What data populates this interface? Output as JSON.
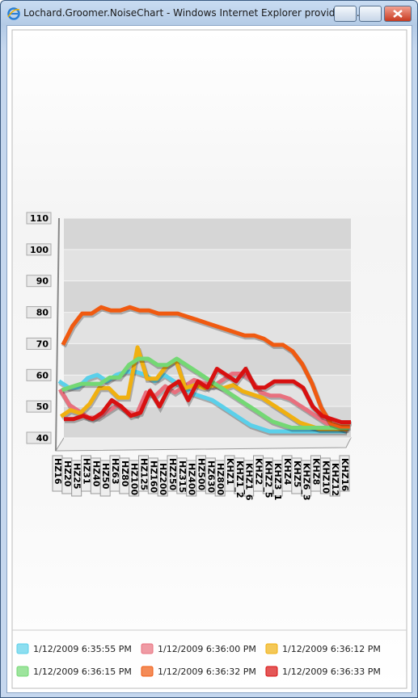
{
  "window": {
    "title": "Lochard.Groomer.NoiseChart - Windows Internet Explorer provided b..."
  },
  "chart_data": {
    "type": "line",
    "categories": [
      "HZ16",
      "HZ20",
      "HZ25",
      "HZ31",
      "HZ40",
      "HZ50",
      "HZ63",
      "HZ80",
      "HZ100",
      "HZ125",
      "HZ160",
      "HZ200",
      "HZ250",
      "HZ315",
      "HZ400",
      "HZ500",
      "HZ630",
      "HZ800",
      "KHZ1",
      "KHZ1_2",
      "KHZ1_6",
      "KHZ2",
      "KHZ2_5",
      "KHZ3_1",
      "KHZ4",
      "KHZ5",
      "KHZ6_3",
      "KHZ8",
      "KHZ10",
      "KHZ12",
      "KHZ16"
    ],
    "ylim": [
      40,
      110
    ],
    "yticks": [
      40,
      50,
      60,
      70,
      80,
      90,
      100,
      110
    ],
    "legend": "bottom",
    "series": [
      {
        "name": "1/12/2009 6:35:55 PM",
        "color": "#5bd0ea",
        "values": [
          60,
          58,
          58,
          61,
          62,
          60,
          62,
          63,
          63,
          62,
          60,
          62,
          60,
          58,
          56,
          55,
          54,
          52,
          50,
          48,
          46,
          45,
          44,
          44,
          44,
          44,
          44,
          44,
          44,
          44,
          44
        ]
      },
      {
        "name": "1/12/2009 6:36:00 PM",
        "color": "#e8707e",
        "values": [
          57,
          52,
          50,
          48,
          48,
          50,
          52,
          50,
          49,
          56,
          55,
          58,
          56,
          58,
          60,
          59,
          58,
          60,
          62,
          62,
          60,
          56,
          55,
          55,
          54,
          52,
          50,
          48,
          46,
          45,
          44
        ]
      },
      {
        "name": "1/12/2009 6:36:12 PM",
        "color": "#f0b010",
        "values": [
          48,
          50,
          49,
          52,
          57,
          57,
          54,
          54,
          70,
          60,
          60,
          64,
          66,
          57,
          58,
          57,
          58,
          57,
          58,
          56,
          55,
          54,
          52,
          50,
          48,
          46,
          45,
          44,
          44,
          44,
          44
        ]
      },
      {
        "name": "1/12/2009 6:36:15 PM",
        "color": "#74d874",
        "values": [
          56,
          57,
          58,
          58,
          58,
          60,
          60,
          64,
          66,
          66,
          64,
          64,
          66,
          64,
          62,
          60,
          58,
          56,
          54,
          52,
          50,
          48,
          46,
          45,
          44,
          44,
          44,
          44,
          44,
          44,
          44
        ]
      },
      {
        "name": "1/12/2009 6:36:32 PM",
        "color": "#f05a10",
        "values": [
          70,
          76,
          80,
          80,
          82,
          81,
          81,
          82,
          81,
          81,
          80,
          80,
          80,
          79,
          78,
          77,
          76,
          75,
          74,
          73,
          73,
          72,
          70,
          70,
          68,
          64,
          58,
          50,
          45,
          44,
          44
        ]
      },
      {
        "name": "1/12/2009 6:36:33 PM",
        "color": "#d81010",
        "values": [
          46,
          46,
          47,
          46,
          48,
          52,
          50,
          47,
          48,
          55,
          50,
          56,
          58,
          52,
          58,
          56,
          62,
          60,
          58,
          62,
          56,
          56,
          58,
          58,
          58,
          56,
          50,
          47,
          46,
          45,
          45
        ]
      }
    ]
  }
}
